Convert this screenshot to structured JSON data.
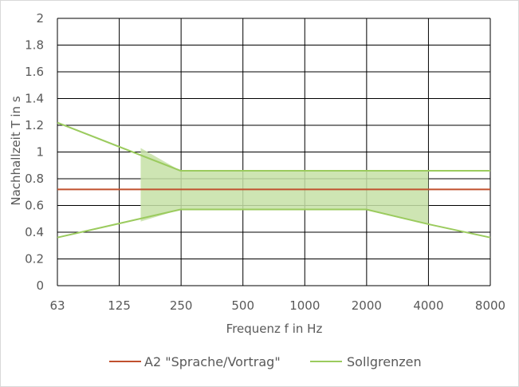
{
  "chart_data": {
    "type": "line",
    "title": "",
    "xlabel": "Frequenz f in Hz",
    "ylabel": "Nachhallzeit T in s",
    "categories": [
      "63",
      "125",
      "250",
      "500",
      "1000",
      "2000",
      "4000",
      "8000"
    ],
    "ylim": [
      0,
      2
    ],
    "yticks": [
      "0",
      "0.2",
      "0.4",
      "0.6",
      "0.8",
      "1",
      "1.2",
      "1.4",
      "1.6",
      "1.8",
      "2"
    ],
    "grid": true,
    "legend": "bottom",
    "series": [
      {
        "name": "A2 \"Sprache/Vortrag\"",
        "color": "#c0502e",
        "points": [
          [
            63,
            0.72
          ],
          [
            8000,
            0.72
          ]
        ]
      },
      {
        "name": "Sollgrenzen",
        "color": "#9bcb5e",
        "role": "upper",
        "points": [
          [
            63,
            1.22
          ],
          [
            250,
            0.86
          ],
          [
            4000,
            0.86
          ],
          [
            8000,
            0.86
          ]
        ]
      },
      {
        "name": "",
        "color": "#9bcb5e",
        "role": "lower",
        "points": [
          [
            63,
            0.36
          ],
          [
            250,
            0.57
          ],
          [
            2000,
            0.57
          ],
          [
            4000,
            0.46
          ],
          [
            8000,
            0.36
          ]
        ]
      }
    ],
    "band": {
      "color": "#c5e0a6",
      "upper": [
        [
          160,
          1.03
        ],
        [
          250,
          0.86
        ],
        [
          4000,
          0.86
        ]
      ],
      "lower": [
        [
          160,
          0.48
        ],
        [
          250,
          0.57
        ],
        [
          2000,
          0.57
        ],
        [
          4000,
          0.46
        ]
      ]
    }
  }
}
